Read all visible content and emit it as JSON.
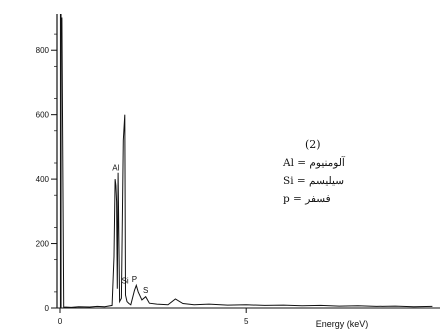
{
  "chart_data": {
    "type": "line",
    "title": "",
    "xlabel": "Energy (keV)",
    "ylabel": "",
    "xlim": [
      0,
      10
    ],
    "ylim": [
      0,
      900
    ],
    "x_ticks": [
      "0",
      "5"
    ],
    "y_ticks": [
      "0",
      "200",
      "400",
      "600",
      "800"
    ],
    "grid": false,
    "series": [
      {
        "values": [
          [
            0.0,
            900
          ],
          [
            0.05,
            900
          ],
          [
            0.1,
            3
          ],
          [
            0.3,
            2
          ],
          [
            0.5,
            4
          ],
          [
            0.8,
            3
          ],
          [
            1.0,
            5
          ],
          [
            1.2,
            4
          ],
          [
            1.4,
            8
          ],
          [
            1.45,
            160
          ],
          [
            1.48,
            400
          ],
          [
            1.5,
            380
          ],
          [
            1.52,
            330
          ],
          [
            1.54,
            60
          ],
          [
            1.56,
            420
          ],
          [
            1.6,
            20
          ],
          [
            1.65,
            30
          ],
          [
            1.7,
            520
          ],
          [
            1.74,
            600
          ],
          [
            1.76,
            40
          ],
          [
            1.8,
            20
          ],
          [
            1.85,
            14
          ],
          [
            1.9,
            10
          ],
          [
            2.0,
            55
          ],
          [
            2.05,
            70
          ],
          [
            2.1,
            50
          ],
          [
            2.2,
            25
          ],
          [
            2.3,
            35
          ],
          [
            2.4,
            15
          ],
          [
            2.6,
            12
          ],
          [
            2.9,
            10
          ],
          [
            3.1,
            28
          ],
          [
            3.3,
            14
          ],
          [
            3.6,
            10
          ],
          [
            4.0,
            12
          ],
          [
            4.5,
            9
          ],
          [
            5.0,
            10
          ],
          [
            5.5,
            8
          ],
          [
            6.0,
            9
          ],
          [
            6.5,
            7
          ],
          [
            7.0,
            8
          ],
          [
            7.5,
            6
          ],
          [
            8.0,
            7
          ],
          [
            8.5,
            5
          ],
          [
            9.0,
            6
          ],
          [
            9.5,
            4
          ],
          [
            10.0,
            5
          ]
        ]
      }
    ],
    "peak_labels": [
      {
        "text": "Al",
        "x": 1.5,
        "y": 420
      },
      {
        "text": "Si",
        "x": 1.75,
        "y": 70
      },
      {
        "text": "P",
        "x": 2.0,
        "y": 75
      },
      {
        "text": "S",
        "x": 2.3,
        "y": 40
      }
    ],
    "annotations": {
      "title": "(2)",
      "lines": [
        "Al = آلومنيوم",
        "Si = سيليسم",
        "p = فسفر"
      ]
    }
  }
}
